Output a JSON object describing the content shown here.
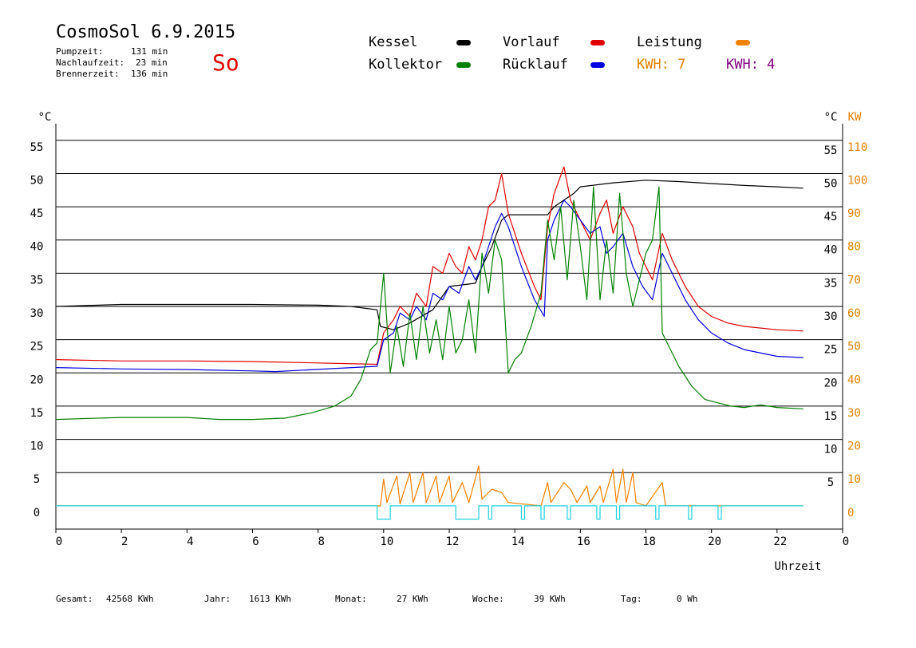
{
  "header": {
    "title": "CosmoSol 6.9.2015",
    "day": "So",
    "pumpzeit_label": "Pumpzeit:",
    "pumpzeit_value": "131 min",
    "nachlaufzeit_label": "Nachlaufzeit:",
    "nachlaufzeit_value": "23 min",
    "brennerzeit_label": "Brennerzeit:",
    "brennerzeit_value": "136 min"
  },
  "legend": {
    "kessel": "Kessel",
    "vorlauf": "Vorlauf",
    "leistung": "Leistung",
    "kollektor": "Kollektor",
    "ruecklauf": "Rücklauf",
    "kwh1": "KWH: 7",
    "kwh2": "KWH: 4",
    "colors": {
      "kessel": "#000000",
      "vorlauf": "#e00000",
      "leistung": "#f08000",
      "kollektor": "#008000",
      "ruecklauf": "#0000e0",
      "kwh1": "#e08000",
      "kwh2": "#800080",
      "pump": "#20d0e0"
    }
  },
  "footer": {
    "gesamt_label": "Gesamt:",
    "gesamt_value": "42568 KWh",
    "jahr_label": "Jahr:",
    "jahr_value": "1613 KWh",
    "monat_label": "Monat:",
    "monat_value": "27 KWh",
    "woche_label": "Woche:",
    "woche_value": "39 KWh",
    "tag_label": "Tag:",
    "tag_value": "0 Wh"
  },
  "chart_data": {
    "type": "line",
    "xlabel": "Uhrzeit",
    "ylabel_left": "°C",
    "ylabel_right_temp": "°C",
    "ylabel_right_power": "KW",
    "xlim": [
      0,
      24
    ],
    "ylim": [
      -3.5,
      57.5
    ],
    "grid": true,
    "x_ticks": [
      "0",
      "2",
      "4",
      "6",
      "8",
      "10",
      "12",
      "14",
      "16",
      "18",
      "20",
      "22",
      "0"
    ],
    "y_ticks_left": [
      "0",
      "5",
      "10",
      "15",
      "20",
      "25",
      "30",
      "35",
      "40",
      "45",
      "50",
      "55"
    ],
    "y_ticks_right_temp": [
      "5",
      "10",
      "15",
      "20",
      "25",
      "30",
      "35",
      "40",
      "45",
      "50",
      "55"
    ],
    "y_ticks_right_power": [
      "0",
      "10",
      "20",
      "30",
      "40",
      "50",
      "60",
      "70",
      "80",
      "90",
      "100",
      "110"
    ],
    "series": [
      {
        "name": "Kessel",
        "color": "#000000",
        "points": [
          [
            0,
            30.0
          ],
          [
            2,
            30.3
          ],
          [
            4,
            30.3
          ],
          [
            6,
            30.3
          ],
          [
            8,
            30.2
          ],
          [
            9,
            30.0
          ],
          [
            9.8,
            29.5
          ],
          [
            9.9,
            27.0
          ],
          [
            10.3,
            26.5
          ],
          [
            10.8,
            27.5
          ],
          [
            11.5,
            29.5
          ],
          [
            12.0,
            33.0
          ],
          [
            12.8,
            33.5
          ],
          [
            13.0,
            36.0
          ],
          [
            13.3,
            39.0
          ],
          [
            13.6,
            43.0
          ],
          [
            13.8,
            43.8
          ],
          [
            15.0,
            43.8
          ],
          [
            15.2,
            45.0
          ],
          [
            15.8,
            47.0
          ],
          [
            16.0,
            48.0
          ],
          [
            17.0,
            48.6
          ],
          [
            18.0,
            49.0
          ],
          [
            19.0,
            48.8
          ],
          [
            20.0,
            48.5
          ],
          [
            21.0,
            48.2
          ],
          [
            22.0,
            48.0
          ],
          [
            22.8,
            47.8
          ]
        ]
      },
      {
        "name": "Vorlauf",
        "color": "#e00000",
        "points": [
          [
            0,
            22.0
          ],
          [
            2,
            21.8
          ],
          [
            4,
            21.8
          ],
          [
            6,
            21.7
          ],
          [
            8,
            21.5
          ],
          [
            9.8,
            21.3
          ],
          [
            10.0,
            26.0
          ],
          [
            10.3,
            28.0
          ],
          [
            10.5,
            30.0
          ],
          [
            10.8,
            28.5
          ],
          [
            11.0,
            32.0
          ],
          [
            11.3,
            30.0
          ],
          [
            11.5,
            36.0
          ],
          [
            11.8,
            35.0
          ],
          [
            12.0,
            38.0
          ],
          [
            12.2,
            36.0
          ],
          [
            12.4,
            35.0
          ],
          [
            12.6,
            39.0
          ],
          [
            12.8,
            37.0
          ],
          [
            13.0,
            40.0
          ],
          [
            13.2,
            45.0
          ],
          [
            13.4,
            46.0
          ],
          [
            13.6,
            50.0
          ],
          [
            13.8,
            44.0
          ],
          [
            14.2,
            38.0
          ],
          [
            14.6,
            33.0
          ],
          [
            14.8,
            31.0
          ],
          [
            15.0,
            42.0
          ],
          [
            15.2,
            47.0
          ],
          [
            15.5,
            51.0
          ],
          [
            15.7,
            46.0
          ],
          [
            16.0,
            43.0
          ],
          [
            16.3,
            40.0
          ],
          [
            16.6,
            44.0
          ],
          [
            16.8,
            46.0
          ],
          [
            17.0,
            41.0
          ],
          [
            17.3,
            45.0
          ],
          [
            17.6,
            42.0
          ],
          [
            17.8,
            38.0
          ],
          [
            18.2,
            34.0
          ],
          [
            18.5,
            41.0
          ],
          [
            18.8,
            37.0
          ],
          [
            19.2,
            33.0
          ],
          [
            19.6,
            30.0
          ],
          [
            20.0,
            28.5
          ],
          [
            20.5,
            27.5
          ],
          [
            21.0,
            27.0
          ],
          [
            22.0,
            26.5
          ],
          [
            22.8,
            26.3
          ]
        ]
      },
      {
        "name": "Rücklauf",
        "color": "#0000e0",
        "points": [
          [
            0,
            20.8
          ],
          [
            2,
            20.6
          ],
          [
            4,
            20.5
          ],
          [
            6,
            20.3
          ],
          [
            6.7,
            20.2
          ],
          [
            9.8,
            21.0
          ],
          [
            10.0,
            25.0
          ],
          [
            10.3,
            26.0
          ],
          [
            10.5,
            29.0
          ],
          [
            10.8,
            28.0
          ],
          [
            11.0,
            30.0
          ],
          [
            11.3,
            28.0
          ],
          [
            11.5,
            32.0
          ],
          [
            11.8,
            31.0
          ],
          [
            12.0,
            33.0
          ],
          [
            12.3,
            32.0
          ],
          [
            12.6,
            36.0
          ],
          [
            12.8,
            34.0
          ],
          [
            13.0,
            36.0
          ],
          [
            13.2,
            39.0
          ],
          [
            13.4,
            42.0
          ],
          [
            13.6,
            44.0
          ],
          [
            13.8,
            42.0
          ],
          [
            14.2,
            36.0
          ],
          [
            14.6,
            31.0
          ],
          [
            14.9,
            28.5
          ],
          [
            15.0,
            40.0
          ],
          [
            15.2,
            43.0
          ],
          [
            15.5,
            46.0
          ],
          [
            15.7,
            45.0
          ],
          [
            16.0,
            43.0
          ],
          [
            16.3,
            41.0
          ],
          [
            16.6,
            42.0
          ],
          [
            16.8,
            38.0
          ],
          [
            17.0,
            39.0
          ],
          [
            17.3,
            41.0
          ],
          [
            17.6,
            36.0
          ],
          [
            17.9,
            33.0
          ],
          [
            18.2,
            31.0
          ],
          [
            18.5,
            38.0
          ],
          [
            18.8,
            35.0
          ],
          [
            19.2,
            31.0
          ],
          [
            19.6,
            28.0
          ],
          [
            20.0,
            26.0
          ],
          [
            20.5,
            24.5
          ],
          [
            21.0,
            23.5
          ],
          [
            22.0,
            22.5
          ],
          [
            22.8,
            22.3
          ]
        ]
      },
      {
        "name": "Kollektor",
        "color": "#008000",
        "points": [
          [
            0,
            13.0
          ],
          [
            2,
            13.3
          ],
          [
            4,
            13.3
          ],
          [
            5,
            13.0
          ],
          [
            6,
            13.0
          ],
          [
            7,
            13.2
          ],
          [
            7.8,
            14.0
          ],
          [
            8.5,
            15.0
          ],
          [
            9.0,
            16.5
          ],
          [
            9.3,
            19.0
          ],
          [
            9.6,
            23.5
          ],
          [
            9.8,
            24.5
          ],
          [
            10.0,
            35.0
          ],
          [
            10.2,
            20.0
          ],
          [
            10.4,
            27.0
          ],
          [
            10.6,
            21.0
          ],
          [
            10.8,
            29.0
          ],
          [
            11.0,
            22.0
          ],
          [
            11.2,
            30.0
          ],
          [
            11.4,
            23.0
          ],
          [
            11.6,
            28.0
          ],
          [
            11.8,
            22.0
          ],
          [
            12.0,
            30.0
          ],
          [
            12.2,
            23.0
          ],
          [
            12.4,
            25.0
          ],
          [
            12.6,
            31.0
          ],
          [
            12.8,
            23.0
          ],
          [
            13.0,
            38.0
          ],
          [
            13.2,
            32.0
          ],
          [
            13.4,
            40.0
          ],
          [
            13.6,
            37.0
          ],
          [
            13.8,
            20.0
          ],
          [
            14.0,
            22.0
          ],
          [
            14.2,
            23.0
          ],
          [
            14.5,
            27.0
          ],
          [
            14.8,
            32.0
          ],
          [
            15.0,
            43.0
          ],
          [
            15.2,
            37.0
          ],
          [
            15.4,
            45.0
          ],
          [
            15.6,
            34.0
          ],
          [
            15.8,
            46.0
          ],
          [
            16.0,
            39.0
          ],
          [
            16.2,
            31.0
          ],
          [
            16.4,
            48.0
          ],
          [
            16.6,
            31.0
          ],
          [
            16.8,
            40.0
          ],
          [
            17.0,
            32.0
          ],
          [
            17.2,
            47.0
          ],
          [
            17.4,
            35.0
          ],
          [
            17.6,
            30.0
          ],
          [
            17.8,
            34.0
          ],
          [
            18.0,
            38.0
          ],
          [
            18.2,
            40.0
          ],
          [
            18.4,
            48.0
          ],
          [
            18.5,
            26.0
          ],
          [
            18.7,
            24.0
          ],
          [
            19.0,
            21.0
          ],
          [
            19.4,
            18.0
          ],
          [
            19.8,
            16.0
          ],
          [
            20.2,
            15.5
          ],
          [
            20.6,
            15.0
          ],
          [
            21.0,
            14.8
          ],
          [
            21.5,
            15.2
          ],
          [
            22.0,
            14.8
          ],
          [
            22.8,
            14.6
          ]
        ]
      },
      {
        "name": "Leistung",
        "color": "#f08000",
        "points": [
          [
            0,
            0
          ],
          [
            9.9,
            0
          ],
          [
            10.0,
            4.0
          ],
          [
            10.1,
            0.5
          ],
          [
            10.4,
            4.5
          ],
          [
            10.5,
            0.3
          ],
          [
            10.8,
            5.0
          ],
          [
            10.9,
            0.5
          ],
          [
            11.2,
            5.0
          ],
          [
            11.3,
            0.5
          ],
          [
            11.6,
            4.5
          ],
          [
            11.7,
            0.5
          ],
          [
            12.0,
            4.5
          ],
          [
            12.1,
            0.5
          ],
          [
            12.4,
            3.5
          ],
          [
            12.6,
            0.5
          ],
          [
            12.9,
            6.0
          ],
          [
            13.0,
            1.0
          ],
          [
            13.3,
            2.5
          ],
          [
            13.6,
            2.0
          ],
          [
            13.8,
            0.5
          ],
          [
            14.8,
            0.0
          ],
          [
            15.0,
            3.5
          ],
          [
            15.1,
            0.5
          ],
          [
            15.5,
            3.5
          ],
          [
            15.7,
            2.5
          ],
          [
            15.9,
            0.5
          ],
          [
            16.2,
            3.0
          ],
          [
            16.3,
            0.5
          ],
          [
            16.6,
            3.0
          ],
          [
            16.7,
            0.5
          ],
          [
            17.0,
            5.5
          ],
          [
            17.1,
            0.5
          ],
          [
            17.3,
            5.5
          ],
          [
            17.4,
            0.5
          ],
          [
            17.6,
            5.0
          ],
          [
            17.7,
            0.5
          ],
          [
            18.0,
            0.0
          ],
          [
            18.5,
            3.5
          ],
          [
            18.6,
            0.0
          ],
          [
            22.8,
            0.0
          ]
        ]
      },
      {
        "name": "Pumpe",
        "color": "#20d0e0",
        "points": [
          [
            0,
            0
          ],
          [
            9.8,
            0
          ],
          [
            9.8,
            -2
          ],
          [
            10.2,
            -2
          ],
          [
            10.2,
            0
          ],
          [
            12.2,
            0
          ],
          [
            12.2,
            -2
          ],
          [
            12.9,
            -2
          ],
          [
            12.9,
            0
          ],
          [
            13.2,
            0
          ],
          [
            13.2,
            -2
          ],
          [
            13.3,
            -2
          ],
          [
            13.3,
            0
          ],
          [
            14.2,
            0
          ],
          [
            14.2,
            -2
          ],
          [
            14.3,
            -2
          ],
          [
            14.3,
            0
          ],
          [
            14.8,
            0
          ],
          [
            14.8,
            -2
          ],
          [
            14.9,
            -2
          ],
          [
            14.9,
            0
          ],
          [
            15.6,
            0
          ],
          [
            15.6,
            -2
          ],
          [
            15.7,
            -2
          ],
          [
            15.7,
            0
          ],
          [
            16.5,
            0
          ],
          [
            16.5,
            -2
          ],
          [
            16.6,
            -2
          ],
          [
            16.6,
            0
          ],
          [
            17.1,
            0
          ],
          [
            17.1,
            -2
          ],
          [
            17.2,
            -2
          ],
          [
            17.2,
            0
          ],
          [
            18.3,
            0
          ],
          [
            18.3,
            -2
          ],
          [
            18.4,
            -2
          ],
          [
            18.4,
            0
          ],
          [
            19.3,
            0
          ],
          [
            19.3,
            -2
          ],
          [
            19.4,
            -2
          ],
          [
            19.4,
            0
          ],
          [
            20.2,
            0
          ],
          [
            20.2,
            -2
          ],
          [
            20.3,
            -2
          ],
          [
            20.3,
            0
          ],
          [
            22.8,
            0
          ]
        ]
      }
    ]
  }
}
